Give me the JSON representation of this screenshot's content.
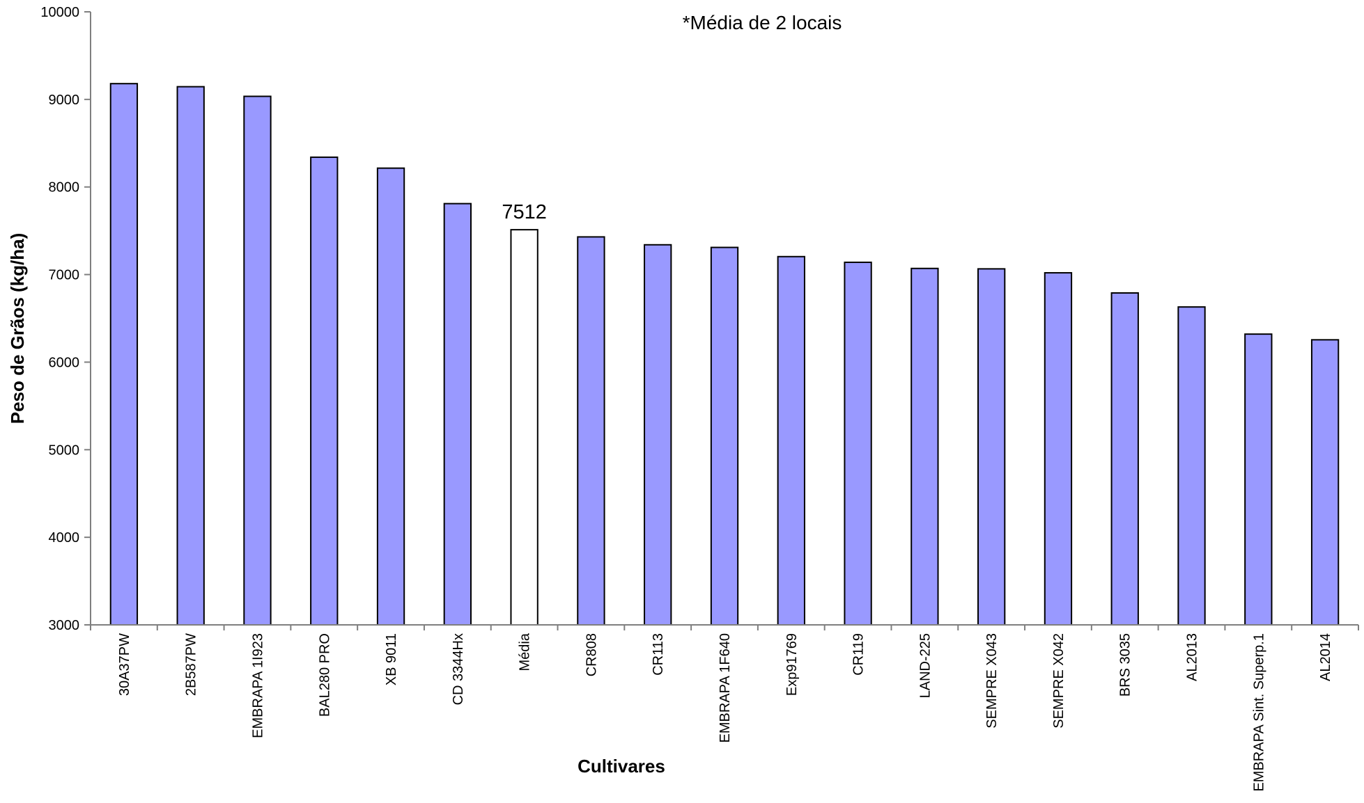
{
  "chart_data": {
    "type": "bar",
    "title": "",
    "annotation": "*Média de 2 locais",
    "xlabel": "Cultivares",
    "ylabel": "Peso de Grãos (kg/ha)",
    "ylim": [
      3000,
      10000
    ],
    "yticks": [
      3000,
      4000,
      5000,
      6000,
      7000,
      8000,
      9000,
      10000
    ],
    "grid": false,
    "legend": "none",
    "categories": [
      "30A37PW",
      "2B587PW",
      "EMBRAPA 1I923",
      "BAL280 PRO",
      "XB 9011",
      "CD 3344Hx",
      "Média",
      "CR808",
      "CR113",
      "EMBRAPA 1F640",
      "Exp91769",
      "CR119",
      "LAND-225",
      "SEMPRE X043",
      "SEMPRE X042",
      "BRS 3035",
      "AL2013",
      "EMBRAPA Sint. Superp.1",
      "AL2014"
    ],
    "values": [
      9180,
      9145,
      9035,
      8340,
      8215,
      7810,
      7512,
      7430,
      7340,
      7310,
      7205,
      7140,
      7070,
      7065,
      7020,
      6790,
      6630,
      6320,
      6255
    ],
    "highlight_index": 6,
    "data_labels": [
      {
        "index": 6,
        "text": "7512"
      }
    ],
    "colors": {
      "bar": "#9999ff",
      "highlight_bar": "#ffffff",
      "bar_stroke": "#000000",
      "axis": "#7f7f7f"
    }
  }
}
